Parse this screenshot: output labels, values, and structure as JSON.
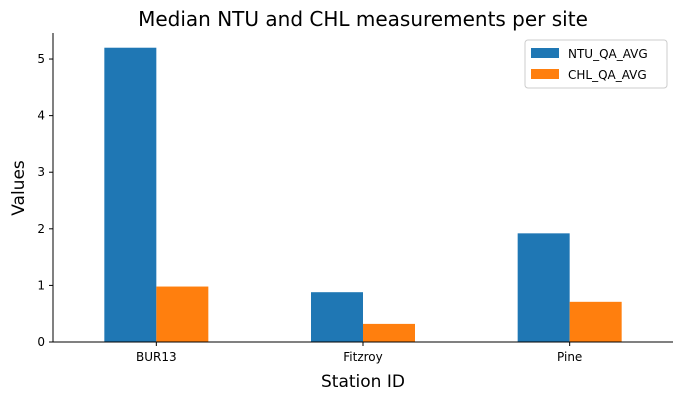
{
  "chart_data": {
    "type": "bar",
    "title": "Median NTU and CHL measurements per site",
    "xlabel": "Station ID",
    "ylabel": "Values",
    "categories": [
      "BUR13",
      "Fitzroy",
      "Pine"
    ],
    "series": [
      {
        "name": "NTU_QA_AVG",
        "values": [
          5.2,
          0.88,
          1.92
        ],
        "color": "#1f77b4"
      },
      {
        "name": "CHL_QA_AVG",
        "values": [
          0.98,
          0.32,
          0.71
        ],
        "color": "#ff7f0e"
      }
    ],
    "yticks": [
      0,
      1,
      2,
      3,
      4,
      5
    ],
    "ylim": [
      0,
      5.46
    ],
    "grid": false,
    "legend": "top-right"
  }
}
